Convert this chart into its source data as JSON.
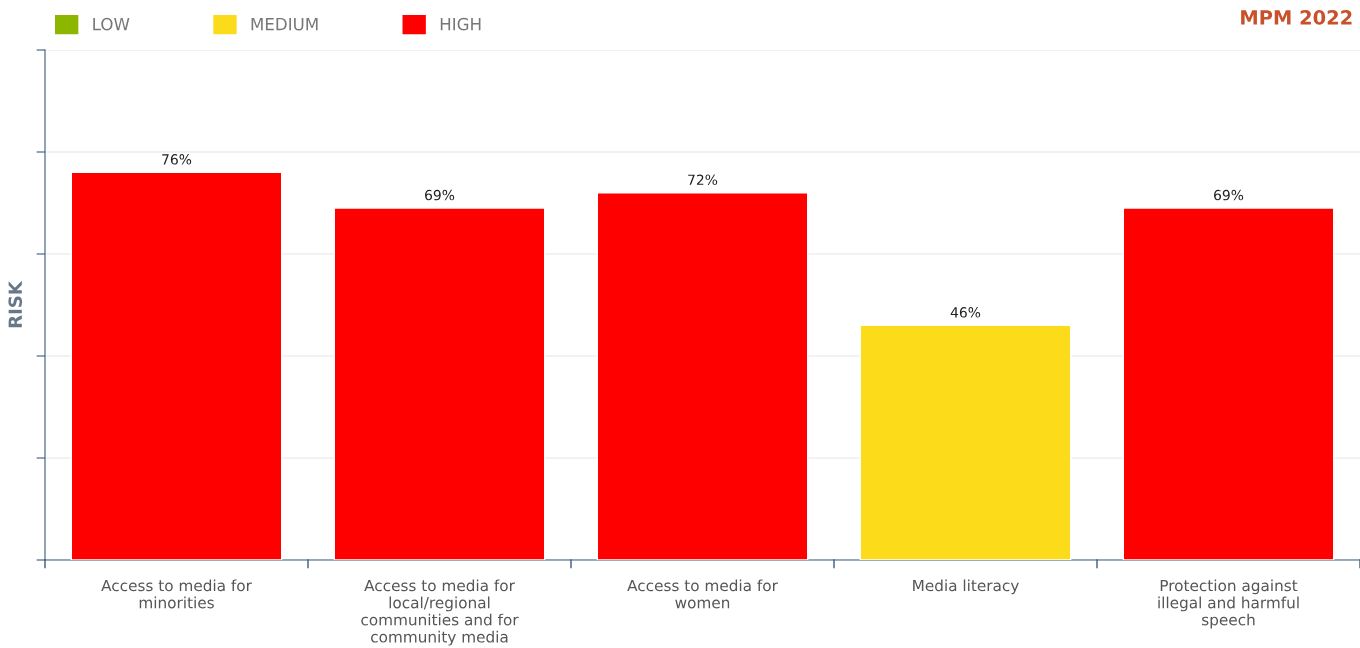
{
  "chart_data": {
    "type": "bar",
    "title": "MPM 2022",
    "ylabel": "RISK",
    "categories": [
      "Access to media for minorities",
      "Access to media for local/regional communities and for community media",
      "Access to media for women",
      "Media literacy",
      "Protection against illegal and harmful speech"
    ],
    "series": [
      {
        "name": "LOW",
        "color": "#8db600",
        "values": [
          null,
          null,
          null,
          null,
          null
        ]
      },
      {
        "name": "MEDIUM",
        "color": "#fcdc1a",
        "values": [
          null,
          null,
          null,
          46,
          null
        ],
        "value_labels": [
          null,
          null,
          null,
          "46%",
          null
        ]
      },
      {
        "name": "HIGH",
        "color": "#ff0000",
        "values": [
          76,
          69,
          72,
          null,
          69
        ],
        "value_labels": [
          "76%",
          "69%",
          "72%",
          null,
          "69%"
        ]
      }
    ],
    "ylim": [
      0,
      100
    ],
    "yticks": [
      {
        "value": 0,
        "label": null
      },
      {
        "value": 20,
        "label": null
      },
      {
        "value": 40,
        "label": null
      },
      {
        "value": 60,
        "label": null
      },
      {
        "value": 80,
        "label": null
      },
      {
        "value": 100,
        "label": null
      }
    ],
    "tick_labels": "x",
    "grid": "y",
    "legend": "top left"
  }
}
